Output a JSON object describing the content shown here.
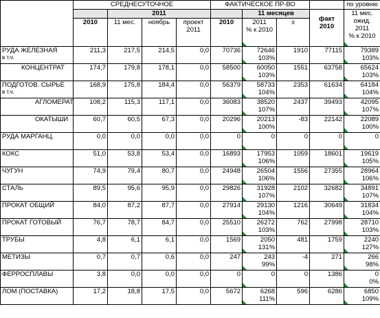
{
  "header": {
    "group1": "СРЕДНЕСУТОЧНОЕ",
    "group1_sub": "2011",
    "group2": "ФАКТИЧЕСКОЕ ПР-ВО",
    "group2_sub": "11 месяцев",
    "col_2010": "2010",
    "col_11mes": "11 мес.",
    "col_nov": "ноябрь",
    "col_proj_l1": "проект",
    "col_proj_l2": "2011",
    "col_f2010": "2010",
    "col_f2011_l1": "2011",
    "col_f2011_l2": "% к 2010",
    "col_pm": "±",
    "col_fakt_l1": "факт",
    "col_fakt_l2": "2010",
    "col_level_l1": "по уровню",
    "col_level_l2": "11 мес.",
    "col_level_l3": "ожид.",
    "col_level_l4": "2011",
    "col_level_l5": "% к 2010"
  },
  "rows": [
    {
      "name": "РУДА ЖЕЛЕЗНАЯ",
      "note": "в т.ч.",
      "v2010": "211,3",
      "v11": "217,5",
      "vnov": "214,5",
      "vproj": "0,0",
      "f2010": "70736",
      "f2011": "72646",
      "f2011p": "103%",
      "pm": "1910",
      "fakt": "77115",
      "lvl": "79389",
      "lvlp": "103%"
    },
    {
      "name": "КОНЦЕНТРАТ",
      "note": "",
      "v2010": "174,7",
      "v11": "179,8",
      "vnov": "178,1",
      "vproj": "0,0",
      "f2010": "58500",
      "f2011": "60050",
      "f2011p": "103%",
      "pm": "1551",
      "fakt": "63758",
      "lvl": "65624",
      "lvlp": "103%"
    },
    {
      "name": "ПОДГОТОВ. СЫРЬЕ",
      "note": "в т.ч.",
      "v2010": "168,9",
      "v11": "175,8",
      "vnov": "184,4",
      "vproj": "0,0",
      "f2010": "56379",
      "f2011": "58733",
      "f2011p": "104%",
      "pm": "2353",
      "fakt": "61634",
      "lvl": "64184",
      "lvlp": "104%"
    },
    {
      "name": "АГЛОМЕРАТ",
      "note": "",
      "v2010": "108,2",
      "v11": "115,3",
      "vnov": "117,1",
      "vproj": "0,0",
      "f2010": "36083",
      "f2011": "38520",
      "f2011p": "107%",
      "pm": "2437",
      "fakt": "39493",
      "lvl": "42095",
      "lvlp": "107%"
    },
    {
      "name": "ОКАТЫШИ",
      "note": "",
      "v2010": "60,7",
      "v11": "60,5",
      "vnov": "67,3",
      "vproj": "0,0",
      "f2010": "20296",
      "f2011": "20213",
      "f2011p": "100%",
      "pm": "-83",
      "fakt": "22142",
      "lvl": "22089",
      "lvlp": "100%"
    },
    {
      "name": "РУДА МАРГАНЦ.",
      "note": "",
      "v2010": "0,0",
      "v11": "0,0",
      "vnov": "0,0",
      "vproj": "0,0",
      "f2010": "0",
      "f2011": "0",
      "f2011p": "",
      "pm": "0",
      "fakt": "0",
      "lvl": "0",
      "lvlp": ""
    },
    {
      "name": "КОКС",
      "note": "",
      "v2010": "51,0",
      "v11": "53,8",
      "vnov": "53,4",
      "vproj": "0,0",
      "f2010": "16893",
      "f2011": "17953",
      "f2011p": "106%",
      "pm": "1059",
      "fakt": "18601",
      "lvl": "19619",
      "lvlp": "105%"
    },
    {
      "name": "ЧУГУН",
      "note": "",
      "v2010": "74,9",
      "v11": "79,4",
      "vnov": "80,7",
      "vproj": "0,0",
      "f2010": "24948",
      "f2011": "26504",
      "f2011p": "106%",
      "pm": "1556",
      "fakt": "27355",
      "lvl": "28964",
      "lvlp": "106%"
    },
    {
      "name": "СТАЛЬ",
      "note": "",
      "v2010": "89,5",
      "v11": "95,6",
      "vnov": "95,9",
      "vproj": "0,0",
      "f2010": "29826",
      "f2011": "31928",
      "f2011p": "107%",
      "pm": "2102",
      "fakt": "32682",
      "lvl": "34891",
      "lvlp": "107%"
    },
    {
      "name": "ПРОКАТ ОБЩИЙ",
      "note": "",
      "v2010": "84,0",
      "v11": "87,2",
      "vnov": "87,7",
      "vproj": "0,0",
      "f2010": "27914",
      "f2011": "29130",
      "f2011p": "104%",
      "pm": "1216",
      "fakt": "30649",
      "lvl": "31834",
      "lvlp": "104%"
    },
    {
      "name": "ПРОКАТ ГОТОВЫЙ",
      "note": "",
      "v2010": "76,7",
      "v11": "78,7",
      "vnov": "84,7",
      "vproj": "0,0",
      "f2010": "25510",
      "f2011": "26272",
      "f2011p": "103%",
      "pm": "762",
      "fakt": "27998",
      "lvl": "28710",
      "lvlp": "103%"
    },
    {
      "name": "ТРУБЫ",
      "note": "",
      "v2010": "4,8",
      "v11": "6,1",
      "vnov": "6,1",
      "vproj": "0,0",
      "f2010": "1569",
      "f2011": "2050",
      "f2011p": "131%",
      "pm": "481",
      "fakt": "1759",
      "lvl": "2240",
      "lvlp": "127%"
    },
    {
      "name": "МЕТИЗЫ",
      "note": "",
      "v2010": "0,7",
      "v11": "0,7",
      "vnov": "0,6",
      "vproj": "0,0",
      "f2010": "247",
      "f2011": "243",
      "f2011p": "99%",
      "pm": "-4",
      "fakt": "271",
      "lvl": "266",
      "lvlp": "98%"
    },
    {
      "name": "ФЕРРОСПЛАВЫ",
      "note": "",
      "v2010": "3,8",
      "v11": "0,0",
      "vnov": "0,0",
      "vproj": "0,0",
      "f2010": "0",
      "f2011": "0",
      "f2011p": "",
      "pm": "0",
      "fakt": "1386",
      "lvl": "0",
      "lvlp": "0%"
    },
    {
      "name": "ЛОМ    (ПОСТАВКА)",
      "note": "",
      "v2010": "17,2",
      "v11": "18,8",
      "vnov": "17,5",
      "vproj": "0,0",
      "f2010": "5672",
      "f2011": "6268",
      "f2011p": "111%",
      "pm": "596",
      "fakt": "6286",
      "lvl": "6850",
      "lvlp": "109%"
    }
  ]
}
